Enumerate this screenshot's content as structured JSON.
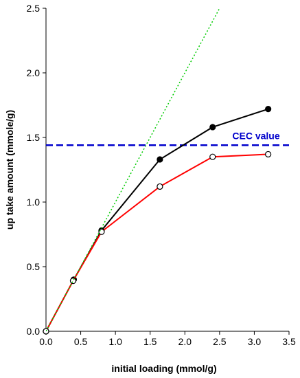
{
  "chart_data": {
    "type": "line",
    "title": "",
    "xlabel": "initial loading (mmol/g)",
    "ylabel": "up take amount (mmole/g)",
    "xlim": [
      0.0,
      3.5
    ],
    "ylim": [
      0.0,
      2.5
    ],
    "xticks": [
      "0.0",
      "0.5",
      "1.0",
      "1.5",
      "2.0",
      "2.5",
      "3.0",
      "3.5"
    ],
    "yticks": [
      "0.0",
      "0.5",
      "1.0",
      "1.5",
      "2.0",
      "2.5"
    ],
    "grid": false,
    "series": [
      {
        "x": [
          0.0,
          0.4,
          0.8,
          1.64,
          2.4,
          3.2
        ],
        "y": [
          0.0,
          0.4,
          0.78,
          1.33,
          1.58,
          1.72
        ],
        "color": "#000000",
        "marker": "filled-circle"
      },
      {
        "x": [
          0.0,
          0.39,
          0.8,
          1.64,
          2.4,
          3.2
        ],
        "y": [
          0.0,
          0.39,
          0.77,
          1.12,
          1.35,
          1.37
        ],
        "color": "#ff0000",
        "marker": "open-circle"
      },
      {
        "x": [
          0.0,
          2.5
        ],
        "y": [
          0.0,
          2.5
        ],
        "color": "#00cc00",
        "style": "dotted"
      }
    ],
    "reference_lines": [
      {
        "label": "CEC value",
        "y": 1.44,
        "color": "#0000cc",
        "style": "dashed"
      }
    ]
  }
}
